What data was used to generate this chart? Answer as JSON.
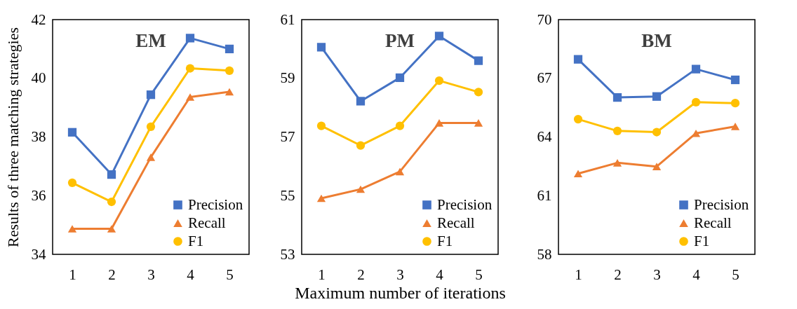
{
  "chart_data": [
    {
      "type": "line",
      "title": "EM",
      "ylabel": "Results of three matching strategies",
      "categories": [
        "1",
        "2",
        "3",
        "4",
        "5"
      ],
      "ylim": [
        34,
        42
      ],
      "yticks": [
        34,
        36,
        38,
        40,
        42
      ],
      "legend": "bottom right",
      "grid": false,
      "series": [
        {
          "name": "Precision",
          "color": "#4472c4",
          "marker": "square",
          "values": [
            38.16,
            36.72,
            39.44,
            41.37,
            41.0
          ]
        },
        {
          "name": "Recall",
          "color": "#ed7d31",
          "marker": "triangle",
          "values": [
            34.87,
            34.87,
            37.31,
            39.36,
            39.54
          ]
        },
        {
          "name": "F1",
          "color": "#ffc000",
          "marker": "circle",
          "values": [
            36.44,
            35.79,
            38.35,
            40.34,
            40.26
          ]
        }
      ]
    },
    {
      "type": "line",
      "title": "PM",
      "xlabel": "Maximum number of iterations",
      "categories": [
        "1",
        "2",
        "3",
        "4",
        "5"
      ],
      "ylim": [
        53,
        61
      ],
      "yticks": [
        53,
        55,
        57,
        59,
        61
      ],
      "legend": "bottom right",
      "grid": false,
      "series": [
        {
          "name": "Precision",
          "color": "#4472c4",
          "marker": "square",
          "values": [
            60.06,
            58.22,
            59.02,
            60.44,
            59.6
          ]
        },
        {
          "name": "Recall",
          "color": "#ed7d31",
          "marker": "triangle",
          "values": [
            54.91,
            55.22,
            55.82,
            57.48,
            57.48
          ]
        },
        {
          "name": "F1",
          "color": "#ffc000",
          "marker": "circle",
          "values": [
            57.38,
            56.71,
            57.38,
            58.92,
            58.53
          ]
        }
      ]
    },
    {
      "type": "line",
      "title": "BM",
      "categories": [
        "1",
        "2",
        "3",
        "4",
        "5"
      ],
      "ylim": [
        58,
        70
      ],
      "yticks": [
        58,
        61,
        64,
        67,
        70
      ],
      "legend": "bottom right",
      "grid": false,
      "series": [
        {
          "name": "Precision",
          "color": "#4472c4",
          "marker": "square",
          "values": [
            67.97,
            66.02,
            66.07,
            67.47,
            66.92
          ]
        },
        {
          "name": "Recall",
          "color": "#ed7d31",
          "marker": "triangle",
          "values": [
            62.13,
            62.68,
            62.49,
            64.19,
            64.54
          ]
        },
        {
          "name": "F1",
          "color": "#ffc000",
          "marker": "circle",
          "values": [
            64.91,
            64.31,
            64.25,
            65.78,
            65.73
          ]
        }
      ]
    }
  ]
}
